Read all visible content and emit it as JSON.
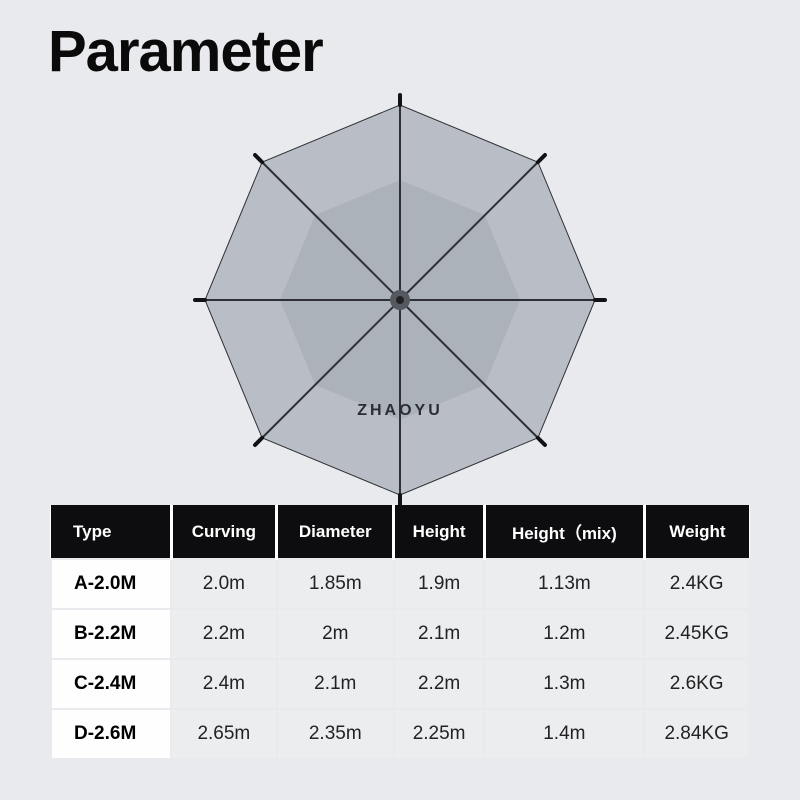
{
  "title": "Parameter",
  "brand": "ZHAOYU",
  "umbrella_svg": {
    "canopy_fill": "#b9bec6",
    "canopy_stroke": "#2e3035",
    "inner_shade": "#9ea3aa",
    "hub_fill": "#555a60",
    "rib_tip": "#111214"
  },
  "table": {
    "header_bg": "#0d0d0f",
    "header_text": "#ffffff",
    "body_cell_bg": "#ecedef",
    "type_cell_bg": "#fefefe",
    "border_color": "#e8eaed",
    "columns": [
      "Type",
      "Curving",
      "Diameter",
      "Height",
      "Height（mix)",
      "Weight"
    ],
    "rows": [
      {
        "type": "A-2.0M",
        "cells": [
          "2.0m",
          "1.85m",
          "1.9m",
          "1.13m",
          "2.4KG"
        ]
      },
      {
        "type": "B-2.2M",
        "cells": [
          "2.2m",
          "2m",
          "2.1m",
          "1.2m",
          "2.45KG"
        ]
      },
      {
        "type": "C-2.4M",
        "cells": [
          "2.4m",
          "2.1m",
          "2.2m",
          "1.3m",
          "2.6KG"
        ]
      },
      {
        "type": "D-2.6M",
        "cells": [
          "2.65m",
          "2.35m",
          "2.25m",
          "1.4m",
          "2.84KG"
        ]
      }
    ]
  }
}
